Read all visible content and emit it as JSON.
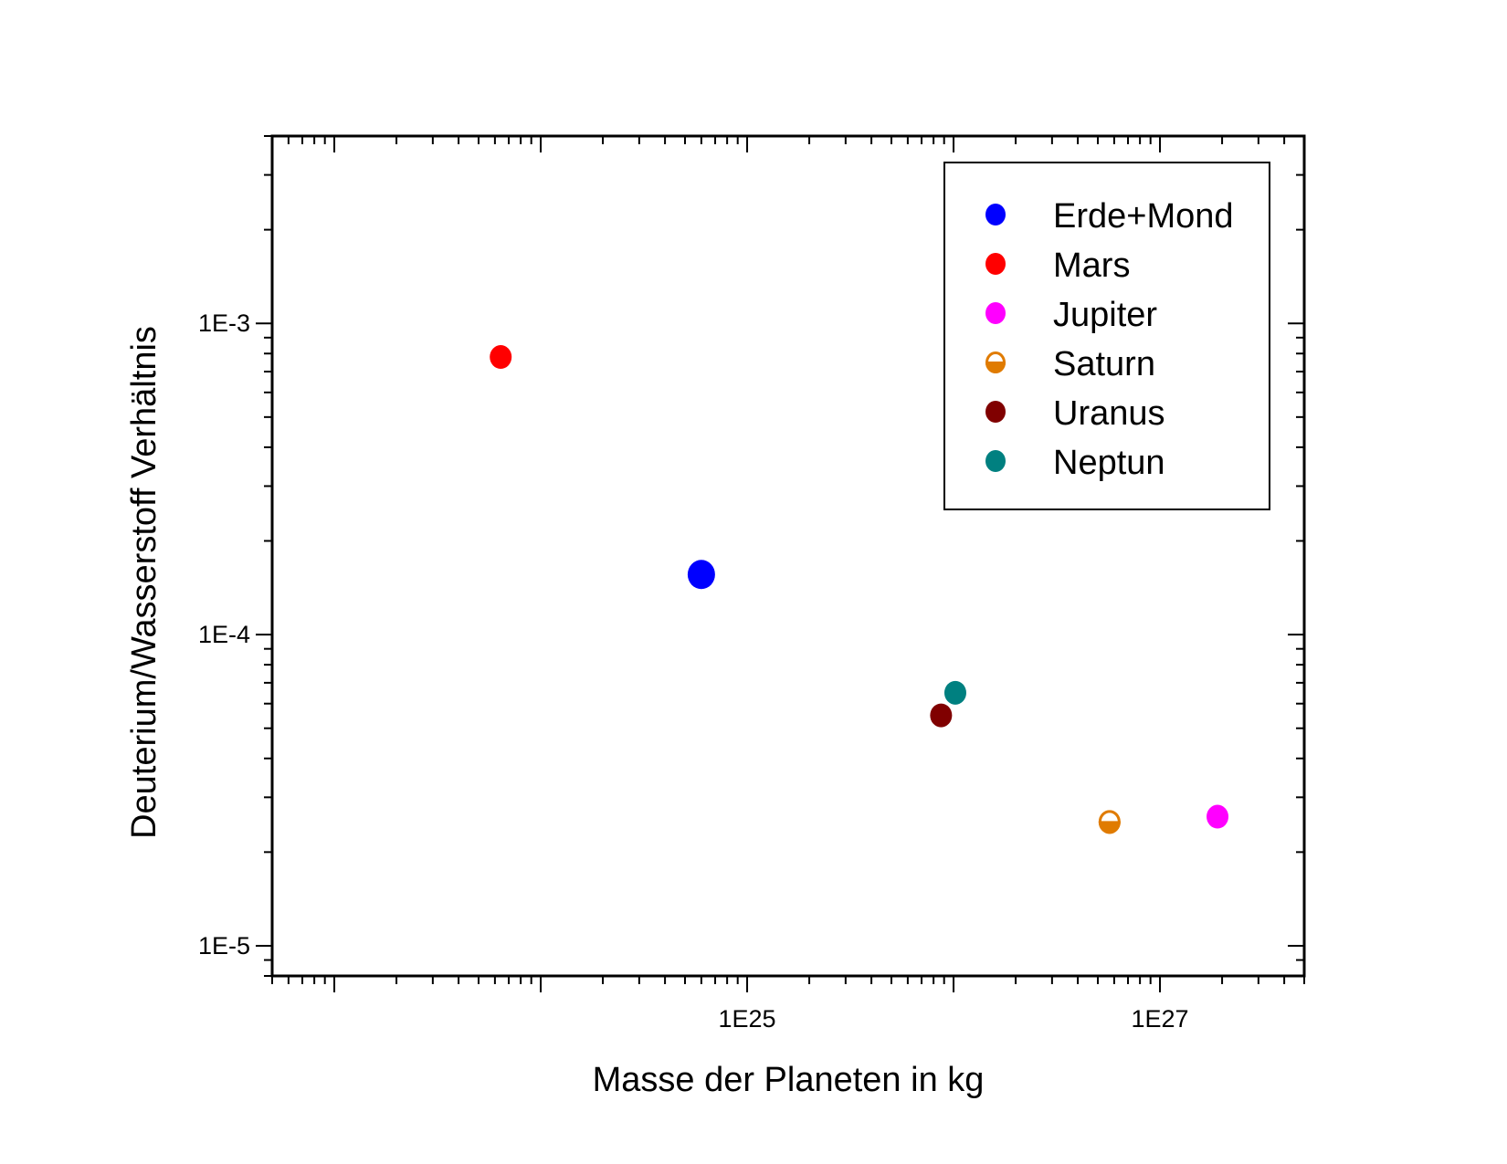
{
  "chart_data": {
    "type": "scatter",
    "title": "",
    "xlabel": "Masse der Planeten in kg",
    "ylabel": "Deuterium/Wasserstoff Verhältnis",
    "x_scale": "log",
    "y_scale": "log",
    "xlim": [
      5e+22,
      5e+27
    ],
    "ylim": [
      8e-06,
      0.004
    ],
    "x_tick_labels": [
      {
        "value": 1e+25,
        "label": "1E25"
      },
      {
        "value": 1e+27,
        "label": "1E27"
      }
    ],
    "y_tick_labels": [
      {
        "value": 0.001,
        "label": "1E-3"
      },
      {
        "value": 0.0001,
        "label": "1E-4"
      },
      {
        "value": 1e-05,
        "label": "1E-5"
      }
    ],
    "grid": false,
    "legend_position": "top-right",
    "series": [
      {
        "name": "Erde+Mond",
        "color": "#0000ff",
        "marker": "filled-circle",
        "x": 6e+24,
        "y": 0.000156
      },
      {
        "name": "Mars",
        "color": "#ff0000",
        "marker": "filled-circle",
        "x": 6.4e+23,
        "y": 0.00078
      },
      {
        "name": "Jupiter",
        "color": "#ff00ff",
        "marker": "filled-circle",
        "x": 1.9e+27,
        "y": 2.6e-05
      },
      {
        "name": "Saturn",
        "color": "#e07b00",
        "marker": "half-filled-circle",
        "x": 5.7e+26,
        "y": 2.5e-05
      },
      {
        "name": "Uranus",
        "color": "#800000",
        "marker": "filled-circle",
        "x": 8.7e+25,
        "y": 5.5e-05
      },
      {
        "name": "Neptun",
        "color": "#008080",
        "marker": "filled-circle",
        "x": 1.02e+26,
        "y": 6.5e-05
      }
    ]
  }
}
